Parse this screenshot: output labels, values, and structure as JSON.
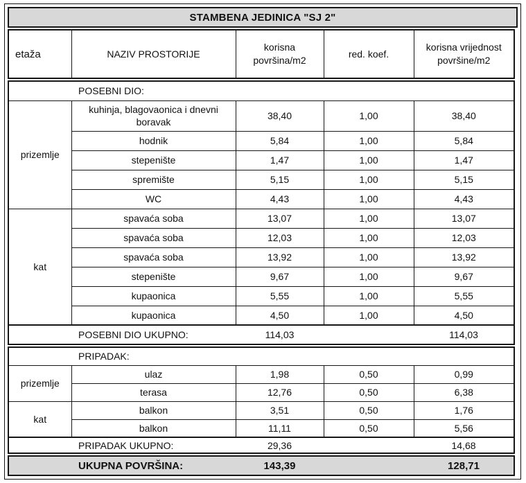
{
  "title": "STAMBENA JEDINICA \"SJ 2\"",
  "columns": [
    "etaža",
    "NAZIV PROSTORIJE",
    "korisna\npovršina/m2",
    "red. koef.",
    "korisna vrijednost\npovršine/m2"
  ],
  "sections": [
    {
      "label": "POSEBNI DIO:",
      "groups": [
        {
          "floor": "prizemlje",
          "rows": [
            {
              "name": "kuhinja, blagovaonica i dnevni boravak",
              "area": "38,40",
              "koef": "1,00",
              "value": "38,40"
            },
            {
              "name": "hodnik",
              "area": "5,84",
              "koef": "1,00",
              "value": "5,84"
            },
            {
              "name": "stepenište",
              "area": "1,47",
              "koef": "1,00",
              "value": "1,47"
            },
            {
              "name": "spremište",
              "area": "5,15",
              "koef": "1,00",
              "value": "5,15"
            },
            {
              "name": "WC",
              "area": "4,43",
              "koef": "1,00",
              "value": "4,43"
            }
          ]
        },
        {
          "floor": "kat",
          "rows": [
            {
              "name": "spavaća soba",
              "area": "13,07",
              "koef": "1,00",
              "value": "13,07"
            },
            {
              "name": "spavaća soba",
              "area": "12,03",
              "koef": "1,00",
              "value": "12,03"
            },
            {
              "name": "spavaća soba",
              "area": "13,92",
              "koef": "1,00",
              "value": "13,92"
            },
            {
              "name": "stepenište",
              "area": "9,67",
              "koef": "1,00",
              "value": "9,67"
            },
            {
              "name": "kupaonica",
              "area": "5,55",
              "koef": "1,00",
              "value": "5,55"
            },
            {
              "name": "kupaonica",
              "area": "4,50",
              "koef": "1,00",
              "value": "4,50"
            }
          ]
        }
      ],
      "total": {
        "label": "POSEBNI DIO UKUPNO:",
        "area": "114,03",
        "value": "114,03"
      }
    },
    {
      "label": "PRIPADAK:",
      "groups": [
        {
          "floor": "prizemlje",
          "rows": [
            {
              "name": "ulaz",
              "area": "1,98",
              "koef": "0,50",
              "value": "0,99"
            },
            {
              "name": "terasa",
              "area": "12,76",
              "koef": "0,50",
              "value": "6,38"
            }
          ]
        },
        {
          "floor": "kat",
          "rows": [
            {
              "name": "balkon",
              "area": "3,51",
              "koef": "0,50",
              "value": "1,76"
            },
            {
              "name": "balkon",
              "area": "11,11",
              "koef": "0,50",
              "value": "5,56"
            }
          ]
        }
      ],
      "total": {
        "label": "PRIPADAK UKUPNO:",
        "area": "29,36",
        "value": "14,68"
      }
    }
  ],
  "grand_total": {
    "label": "UKUPNA POVRŠINA:",
    "area": "143,39",
    "value": "128,71"
  },
  "colors": {
    "header_fill": "#d8d8d8",
    "border": "#161616"
  }
}
